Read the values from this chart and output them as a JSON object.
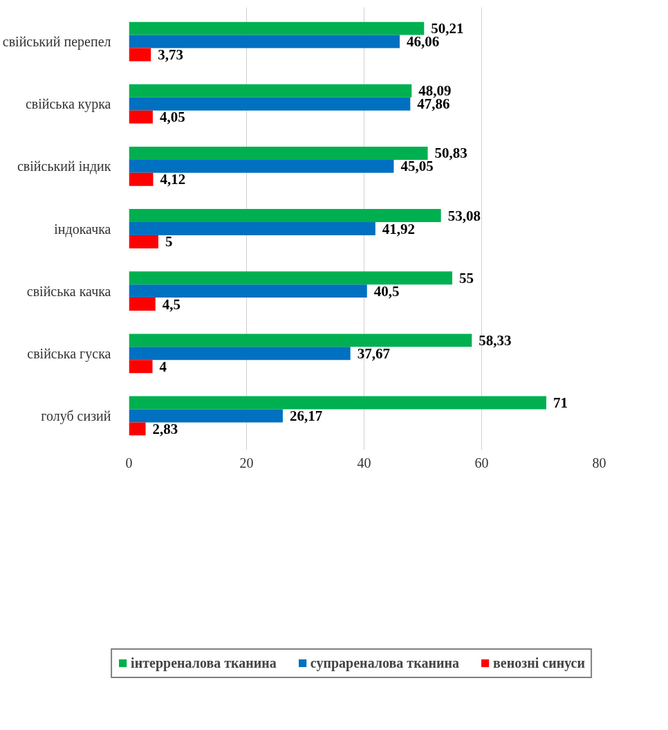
{
  "chart_data": {
    "type": "bar",
    "orientation": "horizontal",
    "categories": [
      "свійський перепел",
      "свійська курка",
      "свійський індик",
      "індокачка",
      "свійська качка",
      "свійська гуска",
      "голуб сизий"
    ],
    "series": [
      {
        "name": "інтерреналова тканина",
        "color": "#00b050",
        "values": [
          50.21,
          48.09,
          50.83,
          53.08,
          55,
          58.33,
          71
        ],
        "value_labels": [
          "50,21",
          "48,09",
          "50,83",
          "53,08",
          "55",
          "58,33",
          "71"
        ]
      },
      {
        "name": "супрареналова тканина",
        "color": "#0070c0",
        "values": [
          46.06,
          47.86,
          45.05,
          41.92,
          40.5,
          37.67,
          26.17
        ],
        "value_labels": [
          "46,06",
          "47,86",
          "45,05",
          "41,92",
          "40,5",
          "37,67",
          "26,17"
        ]
      },
      {
        "name": "венозні синуси",
        "color": "#ff0000",
        "values": [
          3.73,
          4.05,
          4.12,
          5,
          4.5,
          4,
          2.83
        ],
        "value_labels": [
          "3,73",
          "4,05",
          "4,12",
          "5",
          "4,5",
          "4",
          "2,83"
        ]
      }
    ],
    "xlim": [
      0,
      80
    ],
    "xticks": [
      0,
      20,
      40,
      60,
      80
    ],
    "grid": "x",
    "legend": "bottom"
  }
}
